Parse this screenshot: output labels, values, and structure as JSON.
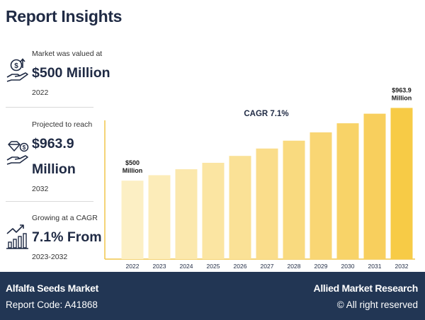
{
  "header": {
    "title": "Report Insights"
  },
  "stats": [
    {
      "label": "Market was valued at",
      "value": "$500 Million",
      "sub": "2022",
      "icon": "money-hand-icon"
    },
    {
      "label": "Projected to reach",
      "value_line1": "$963.9",
      "value_line2": "Million",
      "sub": "2032",
      "icon": "diamond-hand-icon"
    },
    {
      "label": "Growing at a CAGR",
      "value": "7.1% From",
      "sub": "2023-2032",
      "icon": "growth-chart-icon"
    }
  ],
  "chart_data": {
    "type": "bar",
    "title": "CAGR 7.1%",
    "categories": [
      "2022",
      "2023",
      "2024",
      "2025",
      "2026",
      "2027",
      "2028",
      "2029",
      "2030",
      "2031",
      "2032"
    ],
    "values": [
      500,
      535,
      573,
      614,
      658,
      705,
      755,
      808,
      866,
      927,
      963.9
    ],
    "annotations": [
      {
        "category": "2022",
        "line1": "$500",
        "line2": "Million"
      },
      {
        "category": "2032",
        "line1": "$963.9",
        "line2": "Million"
      }
    ],
    "ylim": [
      0,
      1020
    ],
    "colors": [
      "#fcefc4",
      "#fcecb9",
      "#fbe8ad",
      "#fbe5a2",
      "#fae196",
      "#fadd8b",
      "#f9da7f",
      "#f9d674",
      "#f8d368",
      "#f8cf5d",
      "#f7cb46"
    ],
    "axis_color": "#f0c64a",
    "grid": false
  },
  "footer": {
    "report_name": "Alfalfa Seeds Market",
    "report_code": "Report Code: A41868",
    "brand": "Allied Market Research",
    "rights": "© All right reserved"
  }
}
